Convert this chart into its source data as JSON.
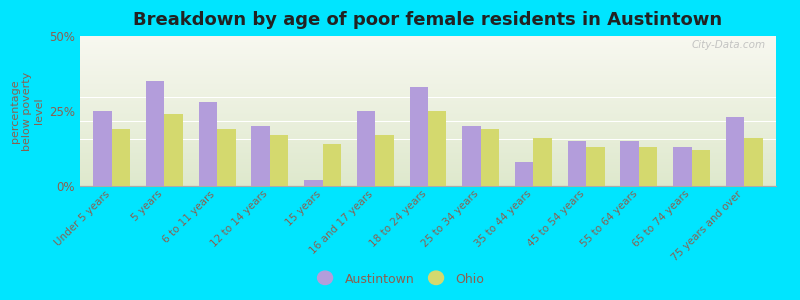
{
  "title": "Breakdown by age of poor female residents in Austintown",
  "categories": [
    "Under 5 years",
    "5 years",
    "6 to 11 years",
    "12 to 14 years",
    "15 years",
    "16 and 17 years",
    "18 to 24 years",
    "25 to 34 years",
    "35 to 44 years",
    "45 to 54 years",
    "55 to 64 years",
    "65 to 74 years",
    "75 years and over"
  ],
  "austintown_values": [
    25,
    35,
    28,
    20,
    2,
    25,
    33,
    20,
    8,
    15,
    15,
    13,
    23
  ],
  "ohio_values": [
    19,
    24,
    19,
    17,
    14,
    17,
    25,
    19,
    16,
    13,
    13,
    12,
    16
  ],
  "austintown_color": "#b39ddb",
  "ohio_color": "#d4d96e",
  "ylabel": "percentage\nbelow poverty\nlevel",
  "ylim": [
    0,
    50
  ],
  "yticks": [
    0,
    25,
    50
  ],
  "ytick_labels": [
    "0%",
    "25%",
    "50%"
  ],
  "figure_bg": "#00e5ff",
  "watermark": "City-Data.com",
  "title_fontsize": 13,
  "text_color": "#8B6050",
  "bar_width": 0.35
}
